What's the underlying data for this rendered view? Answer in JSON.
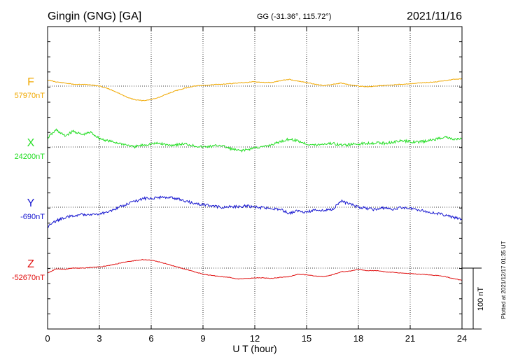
{
  "header": {
    "station": "Gingin (GNG)  [GA]",
    "coords": "GG (-31.36°, 115.72°)",
    "date": "2021/11/16"
  },
  "footer_note": "Plotted at 2021/12/17 01:35 UT",
  "scale_bar": {
    "label": "100 nT",
    "value_nT": 100
  },
  "chart_data": {
    "type": "line",
    "xlabel": "U T (hour)",
    "ylabel": "",
    "xlim": [
      0,
      24
    ],
    "x_ticks": [
      "0",
      "3",
      "6",
      "9",
      "12",
      "15",
      "18",
      "21",
      "24"
    ],
    "grid": true,
    "series": [
      {
        "name": "F",
        "baseline_label": "57970nT",
        "baseline_nT": 57970,
        "color": "#f0a800",
        "x": [
          0,
          0.5,
          1,
          1.5,
          2,
          2.5,
          3,
          3.5,
          4,
          4.5,
          5,
          5.5,
          6,
          6.5,
          7,
          7.5,
          8,
          8.5,
          9,
          9.5,
          10,
          10.5,
          11,
          11.5,
          12,
          12.5,
          13,
          13.5,
          14,
          14.5,
          15,
          15.5,
          16,
          16.5,
          17,
          17.5,
          18,
          18.5,
          19,
          19.5,
          20,
          20.5,
          21,
          21.5,
          22,
          22.5,
          23,
          23.5,
          24
        ],
        "y": [
          57980,
          57977,
          57975,
          57973,
          57973,
          57972,
          57970,
          57966,
          57960,
          57953,
          57948,
          57946,
          57948,
          57952,
          57958,
          57963,
          57967,
          57970,
          57971,
          57972,
          57973,
          57974,
          57975,
          57976,
          57977,
          57976,
          57976,
          57979,
          57981,
          57978,
          57976,
          57973,
          57971,
          57973,
          57975,
          57972,
          57970,
          57969,
          57970,
          57971,
          57972,
          57973,
          57974,
          57975,
          57976,
          57977,
          57979,
          57981,
          57982
        ]
      },
      {
        "name": "X",
        "baseline_label": "24200nT",
        "baseline_nT": 24200,
        "color": "#22dd22",
        "x": [
          0,
          0.5,
          1,
          1.5,
          2,
          2.5,
          3,
          3.5,
          4,
          4.5,
          5,
          5.5,
          6,
          6.5,
          7,
          7.5,
          8,
          8.5,
          9,
          9.5,
          10,
          10.5,
          11,
          11.5,
          12,
          12.5,
          13,
          13.5,
          14,
          14.5,
          15,
          15.5,
          16,
          16.5,
          17,
          17.5,
          18,
          18.5,
          19,
          19.5,
          20,
          20.5,
          21,
          21.5,
          22,
          22.5,
          23,
          23.5,
          24
        ],
        "y": [
          24215,
          24228,
          24218,
          24226,
          24220,
          24224,
          24214,
          24210,
          24207,
          24204,
          24200,
          24203,
          24205,
          24206,
          24203,
          24204,
          24205,
          24202,
          24200,
          24201,
          24203,
          24198,
          24194,
          24195,
          24199,
          24200,
          24204,
          24209,
          24213,
          24210,
          24205,
          24203,
          24205,
          24206,
          24203,
          24204,
          24205,
          24206,
          24207,
          24206,
          24208,
          24210,
          24209,
          24208,
          24210,
          24213,
          24217,
          24212,
          24214
        ]
      },
      {
        "name": "Y",
        "baseline_label": "-690nT",
        "baseline_nT": -690,
        "color": "#1818d0",
        "x": [
          0,
          0.5,
          1,
          1.5,
          2,
          2.5,
          3,
          3.5,
          4,
          4.5,
          5,
          5.5,
          6,
          6.5,
          7,
          7.5,
          8,
          8.5,
          9,
          9.5,
          10,
          10.5,
          11,
          11.5,
          12,
          12.5,
          13,
          13.5,
          14,
          14.5,
          15,
          15.5,
          16,
          16.5,
          17,
          17.5,
          18,
          18.5,
          19,
          19.5,
          20,
          20.5,
          21,
          21.5,
          22,
          22.5,
          23,
          23.5,
          24
        ],
        "y": [
          -723,
          -712,
          -707,
          -704,
          -702,
          -701,
          -702,
          -697,
          -692,
          -686,
          -681,
          -676,
          -675,
          -674,
          -673,
          -676,
          -680,
          -684,
          -686,
          -688,
          -690,
          -689,
          -689,
          -688,
          -690,
          -691,
          -692,
          -694,
          -700,
          -696,
          -698,
          -694,
          -696,
          -693,
          -680,
          -685,
          -690,
          -692,
          -694,
          -691,
          -693,
          -690,
          -692,
          -694,
          -698,
          -700,
          -703,
          -707,
          -710
        ]
      },
      {
        "name": "Z",
        "baseline_label": "-52670nT",
        "baseline_nT": -52670,
        "color": "#e01010",
        "x": [
          0,
          0.5,
          1,
          1.5,
          2,
          2.5,
          3,
          3.5,
          4,
          4.5,
          5,
          5.5,
          6,
          6.5,
          7,
          7.5,
          8,
          8.5,
          9,
          9.5,
          10,
          10.5,
          11,
          11.5,
          12,
          12.5,
          13,
          13.5,
          14,
          14.5,
          15,
          15.5,
          16,
          16.5,
          17,
          17.5,
          18,
          18.5,
          19,
          19.5,
          20,
          20.5,
          21,
          21.5,
          22,
          22.5,
          23,
          23.5,
          24
        ],
        "y": [
          -52678,
          -52671,
          -52672,
          -52670,
          -52670,
          -52669,
          -52668,
          -52666,
          -52663,
          -52660,
          -52658,
          -52656,
          -52657,
          -52660,
          -52664,
          -52668,
          -52672,
          -52676,
          -52680,
          -52682,
          -52684,
          -52685,
          -52688,
          -52687,
          -52686,
          -52686,
          -52687,
          -52685,
          -52684,
          -52680,
          -52681,
          -52683,
          -52684,
          -52681,
          -52676,
          -52675,
          -52672,
          -52674,
          -52674,
          -52676,
          -52677,
          -52678,
          -52679,
          -52680,
          -52681,
          -52682,
          -52684,
          -52687,
          -52690
        ]
      }
    ]
  }
}
